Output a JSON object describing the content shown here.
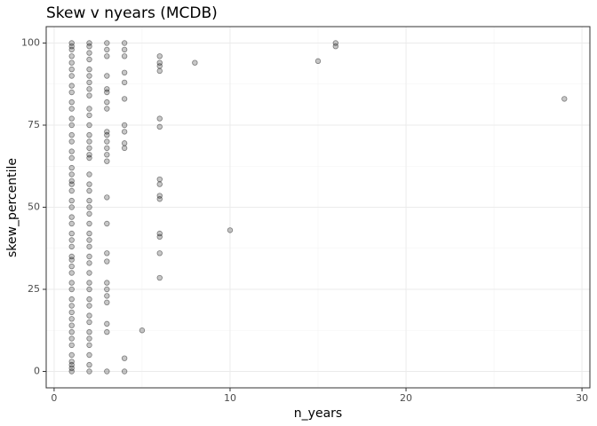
{
  "chart_data": {
    "type": "scatter",
    "title": "Skew v nyears (MCDB)",
    "x_label": "n_years",
    "y_label": "skew_percentile",
    "color": "#000000",
    "grid": true,
    "xlim": [
      -0.45,
      30.45
    ],
    "ylim": [
      -5,
      105
    ],
    "xticks": [
      0,
      10,
      20,
      30
    ],
    "yticks": [
      0,
      25,
      50,
      75,
      100
    ],
    "xminorticks": [
      5,
      15,
      25
    ],
    "yminorticks": [
      12.5,
      37.5,
      62.5,
      87.5
    ],
    "x": [
      1,
      1,
      1,
      1,
      1,
      1,
      1,
      1,
      1,
      1,
      1,
      1,
      1,
      1,
      1,
      1,
      1,
      1,
      1,
      1,
      1,
      1,
      1,
      1,
      1,
      1,
      1,
      1,
      1,
      1,
      1,
      1,
      1,
      1,
      1,
      1,
      1,
      1,
      1,
      1,
      1,
      1,
      1,
      1,
      1,
      1,
      1,
      1,
      2,
      2,
      2,
      2,
      2,
      2,
      2,
      2,
      2,
      2,
      2,
      2,
      2,
      2,
      2,
      2,
      2,
      2,
      2,
      2,
      2,
      2,
      2,
      2,
      2,
      2,
      2,
      2,
      2,
      2,
      2,
      2,
      2,
      2,
      2,
      2,
      2,
      2,
      2,
      2,
      2,
      2,
      3,
      3,
      3,
      3,
      3,
      3,
      3,
      3,
      3,
      3,
      3,
      3,
      3,
      3,
      3,
      3,
      3,
      3,
      3,
      3,
      3,
      3,
      3,
      3,
      3,
      4,
      4,
      4,
      4,
      4,
      4,
      4,
      4,
      4,
      4,
      4,
      4,
      5,
      6,
      6,
      6,
      6,
      6,
      6,
      6,
      6,
      6,
      6,
      6,
      6,
      6,
      6,
      8,
      10,
      15,
      16,
      16,
      29
    ],
    "y": [
      0,
      1,
      2,
      3,
      5,
      8,
      10,
      12,
      14,
      16,
      18,
      20,
      22,
      25,
      27,
      30,
      32,
      34,
      35,
      38,
      40,
      42,
      45,
      47,
      50,
      52,
      55,
      57,
      58,
      60,
      62,
      65,
      67,
      70,
      72,
      75,
      77,
      80,
      82,
      85,
      87,
      90,
      92,
      94,
      96,
      98,
      99,
      100,
      0,
      2,
      5,
      8,
      10,
      12,
      15,
      17,
      20,
      22,
      25,
      27,
      30,
      33,
      35,
      38,
      40,
      42,
      45,
      48,
      50,
      52,
      55,
      57,
      60,
      65,
      66,
      68,
      70,
      72,
      75,
      78,
      80,
      84,
      86,
      88,
      90,
      92,
      95,
      97,
      99,
      100,
      0,
      12,
      14.5,
      21,
      23,
      25,
      27,
      33.5,
      36,
      45,
      53,
      64,
      66,
      68,
      70,
      72,
      73,
      80,
      82,
      85,
      86,
      90,
      96,
      98,
      100,
      0,
      4,
      68,
      69.5,
      73,
      75,
      83,
      88,
      91,
      96,
      98,
      100,
      12.5,
      28.5,
      36,
      41,
      42,
      52.5,
      53.5,
      57,
      58.5,
      74.5,
      77,
      91.5,
      93,
      94,
      96,
      94,
      43,
      94.5,
      99,
      100,
      83
    ]
  }
}
